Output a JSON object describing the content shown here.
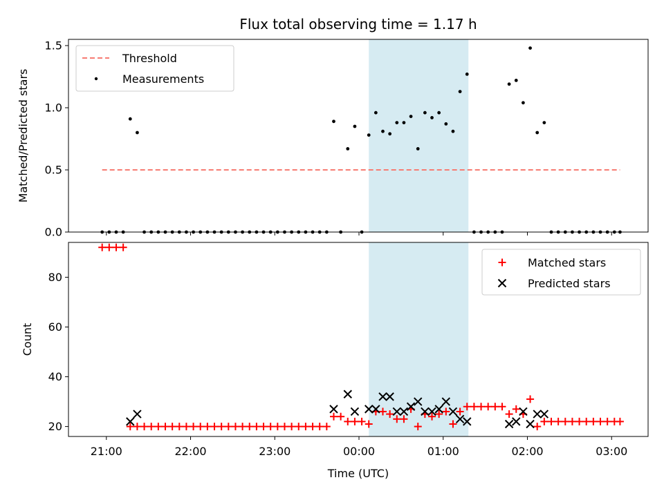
{
  "chart_data": [
    {
      "type": "scatter",
      "title": "Flux total observing time = 1.17 h",
      "xlabel": "",
      "ylabel": "Matched/Predicted stars",
      "ylim": [
        0,
        1.55
      ],
      "xlim": [
        "20:33",
        "03:26"
      ],
      "yticks": [
        "0.0",
        "0.5",
        "1.0",
        "1.5"
      ],
      "shaded_span": [
        "00:07",
        "01:18"
      ],
      "legend": {
        "placement": "top-left",
        "entries": [
          "Threshold",
          "Measurements"
        ]
      },
      "threshold": {
        "name": "Threshold",
        "value": 0.5,
        "x": [
          "20:57",
          "03:06"
        ],
        "color": "#f77b72"
      },
      "series": [
        {
          "name": "Measurements",
          "color": "#000000",
          "points": [
            [
              "20:57",
              0
            ],
            [
              "21:02",
              0
            ],
            [
              "21:07",
              0
            ],
            [
              "21:12",
              0
            ],
            [
              "21:17",
              0.91
            ],
            [
              "21:22",
              0.8
            ],
            [
              "21:27",
              0
            ],
            [
              "21:32",
              0
            ],
            [
              "21:37",
              0
            ],
            [
              "21:42",
              0
            ],
            [
              "21:47",
              0
            ],
            [
              "21:52",
              0
            ],
            [
              "21:57",
              0
            ],
            [
              "22:02",
              0
            ],
            [
              "22:07",
              0
            ],
            [
              "22:12",
              0
            ],
            [
              "22:17",
              0
            ],
            [
              "22:22",
              0
            ],
            [
              "22:27",
              0
            ],
            [
              "22:32",
              0
            ],
            [
              "22:37",
              0
            ],
            [
              "22:42",
              0
            ],
            [
              "22:47",
              0
            ],
            [
              "22:52",
              0
            ],
            [
              "22:57",
              0
            ],
            [
              "23:02",
              0
            ],
            [
              "23:07",
              0
            ],
            [
              "23:12",
              0
            ],
            [
              "23:17",
              0
            ],
            [
              "23:22",
              0
            ],
            [
              "23:27",
              0
            ],
            [
              "23:32",
              0
            ],
            [
              "23:37",
              0
            ],
            [
              "23:42",
              0.89
            ],
            [
              "23:47",
              0
            ],
            [
              "23:52",
              0.67
            ],
            [
              "23:57",
              0.85
            ],
            [
              "00:02",
              0
            ],
            [
              "00:07",
              0.78
            ],
            [
              "00:12",
              0.96
            ],
            [
              "00:17",
              0.81
            ],
            [
              "00:22",
              0.79
            ],
            [
              "00:27",
              0.88
            ],
            [
              "00:32",
              0.88
            ],
            [
              "00:37",
              0.93
            ],
            [
              "00:42",
              0.67
            ],
            [
              "00:47",
              0.96
            ],
            [
              "00:52",
              0.92
            ],
            [
              "00:57",
              0.96
            ],
            [
              "01:02",
              0.87
            ],
            [
              "01:07",
              0.81
            ],
            [
              "01:12",
              1.13
            ],
            [
              "01:17",
              1.27
            ],
            [
              "01:22",
              0
            ],
            [
              "01:27",
              0
            ],
            [
              "01:32",
              0
            ],
            [
              "01:37",
              0
            ],
            [
              "01:42",
              0
            ],
            [
              "01:47",
              1.19
            ],
            [
              "01:52",
              1.22
            ],
            [
              "01:57",
              1.04
            ],
            [
              "02:02",
              1.48
            ],
            [
              "02:07",
              0.8
            ],
            [
              "02:12",
              0.88
            ],
            [
              "02:17",
              0
            ],
            [
              "02:22",
              0
            ],
            [
              "02:27",
              0
            ],
            [
              "02:32",
              0
            ],
            [
              "02:37",
              0
            ],
            [
              "02:42",
              0
            ],
            [
              "02:47",
              0
            ],
            [
              "02:52",
              0
            ],
            [
              "02:57",
              0
            ],
            [
              "03:02",
              0
            ],
            [
              "03:06",
              0
            ]
          ]
        }
      ]
    },
    {
      "type": "scatter",
      "title": "",
      "xlabel": "Time (UTC)",
      "ylabel": "Count",
      "ylim": [
        16,
        94
      ],
      "xlim": [
        "20:33",
        "03:26"
      ],
      "xticks": [
        "21:00",
        "22:00",
        "23:00",
        "00:00",
        "01:00",
        "02:00",
        "03:00"
      ],
      "yticks": [
        "20",
        "40",
        "60",
        "80"
      ],
      "shaded_span": [
        "00:07",
        "01:18"
      ],
      "legend": {
        "placement": "top-right",
        "entries": [
          "Matched stars",
          "Predicted stars"
        ]
      },
      "series": [
        {
          "name": "Matched stars",
          "marker": "plus",
          "color": "#ff0000",
          "points": [
            [
              "20:57",
              92
            ],
            [
              "21:02",
              92
            ],
            [
              "21:07",
              92
            ],
            [
              "21:12",
              92
            ],
            [
              "21:17",
              20
            ],
            [
              "21:22",
              20
            ],
            [
              "21:27",
              20
            ],
            [
              "21:32",
              20
            ],
            [
              "21:37",
              20
            ],
            [
              "21:42",
              20
            ],
            [
              "21:47",
              20
            ],
            [
              "21:52",
              20
            ],
            [
              "21:57",
              20
            ],
            [
              "22:02",
              20
            ],
            [
              "22:07",
              20
            ],
            [
              "22:12",
              20
            ],
            [
              "22:17",
              20
            ],
            [
              "22:22",
              20
            ],
            [
              "22:27",
              20
            ],
            [
              "22:32",
              20
            ],
            [
              "22:37",
              20
            ],
            [
              "22:42",
              20
            ],
            [
              "22:47",
              20
            ],
            [
              "22:52",
              20
            ],
            [
              "22:57",
              20
            ],
            [
              "23:02",
              20
            ],
            [
              "23:07",
              20
            ],
            [
              "23:12",
              20
            ],
            [
              "23:17",
              20
            ],
            [
              "23:22",
              20
            ],
            [
              "23:27",
              20
            ],
            [
              "23:32",
              20
            ],
            [
              "23:37",
              20
            ],
            [
              "23:42",
              24
            ],
            [
              "23:47",
              24
            ],
            [
              "23:52",
              22
            ],
            [
              "23:57",
              22
            ],
            [
              "00:02",
              22
            ],
            [
              "00:07",
              21
            ],
            [
              "00:12",
              26
            ],
            [
              "00:17",
              26
            ],
            [
              "00:22",
              25
            ],
            [
              "00:27",
              23
            ],
            [
              "00:32",
              23
            ],
            [
              "00:37",
              27
            ],
            [
              "00:42",
              20
            ],
            [
              "00:47",
              25
            ],
            [
              "00:52",
              24
            ],
            [
              "00:57",
              25
            ],
            [
              "01:02",
              26
            ],
            [
              "01:07",
              21
            ],
            [
              "01:12",
              26
            ],
            [
              "01:17",
              28
            ],
            [
              "01:22",
              28
            ],
            [
              "01:27",
              28
            ],
            [
              "01:32",
              28
            ],
            [
              "01:37",
              28
            ],
            [
              "01:42",
              28
            ],
            [
              "01:47",
              25
            ],
            [
              "01:52",
              27
            ],
            [
              "01:57",
              25
            ],
            [
              "02:02",
              31
            ],
            [
              "02:07",
              20
            ],
            [
              "02:12",
              22
            ],
            [
              "02:17",
              22
            ],
            [
              "02:22",
              22
            ],
            [
              "02:27",
              22
            ],
            [
              "02:32",
              22
            ],
            [
              "02:37",
              22
            ],
            [
              "02:42",
              22
            ],
            [
              "02:47",
              22
            ],
            [
              "02:52",
              22
            ],
            [
              "02:57",
              22
            ],
            [
              "03:02",
              22
            ],
            [
              "03:06",
              22
            ]
          ]
        },
        {
          "name": "Predicted stars",
          "marker": "x",
          "color": "#000000",
          "points": [
            [
              "21:17",
              22
            ],
            [
              "21:22",
              25
            ],
            [
              "23:42",
              27
            ],
            [
              "23:52",
              33
            ],
            [
              "23:57",
              26
            ],
            [
              "00:07",
              27
            ],
            [
              "00:12",
              27
            ],
            [
              "00:17",
              32
            ],
            [
              "00:22",
              32
            ],
            [
              "00:27",
              26
            ],
            [
              "00:32",
              26
            ],
            [
              "00:37",
              28
            ],
            [
              "00:42",
              30
            ],
            [
              "00:47",
              26
            ],
            [
              "00:52",
              26
            ],
            [
              "00:57",
              27
            ],
            [
              "01:02",
              30
            ],
            [
              "01:07",
              26
            ],
            [
              "01:12",
              23
            ],
            [
              "01:17",
              22
            ],
            [
              "01:47",
              21
            ],
            [
              "01:52",
              22
            ],
            [
              "01:57",
              26
            ],
            [
              "02:02",
              21
            ],
            [
              "02:07",
              25
            ],
            [
              "02:12",
              25
            ]
          ]
        }
      ]
    }
  ]
}
